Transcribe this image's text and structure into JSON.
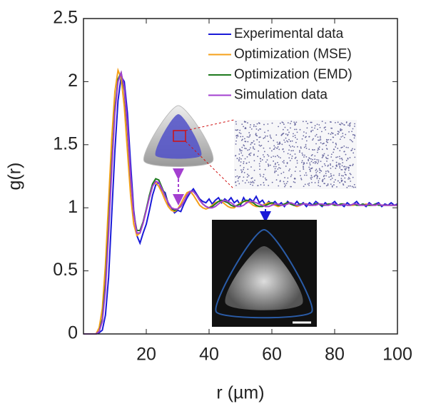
{
  "chart_data": {
    "type": "line",
    "x_label": "r (µm)",
    "y_label": "g(r)",
    "x": [
      0,
      1,
      2,
      3,
      4,
      5,
      6,
      7,
      8,
      9,
      10,
      11,
      12,
      13,
      14,
      15,
      16,
      17,
      18,
      19,
      20,
      21,
      22,
      23,
      24,
      25,
      26,
      27,
      28,
      29,
      30,
      31,
      32,
      33,
      34,
      35,
      36,
      37,
      38,
      39,
      40,
      41,
      42,
      43,
      44,
      45,
      46,
      47,
      48,
      49,
      50,
      51,
      52,
      53,
      54,
      55,
      56,
      57,
      58,
      59,
      60,
      61,
      62,
      63,
      64,
      65,
      66,
      67,
      68,
      69,
      70,
      71,
      72,
      73,
      74,
      75,
      76,
      77,
      78,
      79,
      80,
      81,
      82,
      83,
      84,
      85,
      86,
      87,
      88,
      89,
      90,
      91,
      92,
      93,
      94,
      95,
      96,
      97,
      98,
      99,
      100
    ],
    "series": [
      {
        "name": "Experimental data",
        "color": "#1a1ad8",
        "values": [
          0,
          0,
          0,
          0,
          0,
          0.01,
          0.03,
          0.15,
          0.45,
          0.95,
          1.45,
          1.85,
          2.04,
          2.0,
          1.75,
          1.35,
          0.98,
          0.78,
          0.72,
          0.8,
          0.87,
          0.98,
          1.1,
          1.18,
          1.2,
          1.14,
          1.12,
          1.03,
          1.0,
          0.96,
          0.98,
          0.97,
          1.03,
          1.08,
          1.12,
          1.15,
          1.11,
          1.07,
          1.05,
          1.04,
          1.07,
          1.03,
          1.06,
          1.08,
          1.04,
          1.07,
          1.05,
          1.08,
          1.04,
          1.06,
          1.02,
          1.08,
          1.04,
          1.07,
          1.05,
          1.09,
          1.04,
          1.06,
          1.02,
          1.05,
          1.03,
          1.05,
          1.02,
          1.04,
          1.01,
          1.05,
          1.03,
          1.02,
          1.05,
          1.02,
          1.04,
          1.01,
          1.04,
          1.02,
          1.05,
          1.03,
          1.01,
          1.04,
          1.02,
          1.03,
          1.05,
          1.02,
          1.03,
          1.01,
          1.04,
          1.02,
          1.03,
          1.05,
          1.02,
          1.03,
          1.01,
          1.04,
          1.02,
          1.03,
          1.04,
          1.01,
          1.03,
          1.02,
          1.04,
          1.02,
          1.03
        ]
      },
      {
        "name": "Optimization (MSE)",
        "color": "#f5a01a",
        "values": [
          0,
          0,
          0,
          0,
          0,
          0.05,
          0.2,
          0.55,
          1.05,
          1.55,
          1.92,
          2.09,
          2.03,
          1.8,
          1.45,
          1.1,
          0.87,
          0.78,
          0.8,
          0.88,
          0.98,
          1.09,
          1.18,
          1.2,
          1.17,
          1.12,
          1.06,
          1.01,
          0.98,
          0.97,
          0.99,
          1.03,
          1.08,
          1.12,
          1.13,
          1.1,
          1.06,
          1.02,
          1.0,
          0.99,
          1.0,
          1.02,
          1.04,
          1.05,
          1.05,
          1.03,
          1.01,
          1.0,
          1.0,
          1.02,
          1.04,
          1.05,
          1.05,
          1.04,
          1.02,
          1.01,
          1.01,
          1.02,
          1.03,
          1.04,
          1.03,
          1.02,
          1.01,
          1.02,
          1.03,
          1.04,
          1.03,
          1.02,
          1.01,
          1.02,
          1.03,
          1.03,
          1.02,
          1.02,
          1.03,
          1.03,
          1.02,
          1.02,
          1.03,
          1.03,
          1.02,
          1.02,
          1.03,
          1.03,
          1.02,
          1.02,
          1.02,
          1.03,
          1.02,
          1.02,
          1.03,
          1.02,
          1.02,
          1.02,
          1.03,
          1.02,
          1.02,
          1.02,
          1.02,
          1.02,
          1.02
        ]
      },
      {
        "name": "Optimization (EMD)",
        "color": "#1f7a1f",
        "values": [
          0,
          0,
          0,
          0,
          0,
          0.02,
          0.12,
          0.4,
          0.85,
          1.35,
          1.78,
          2.02,
          2.07,
          1.93,
          1.62,
          1.24,
          0.95,
          0.82,
          0.82,
          0.89,
          0.99,
          1.1,
          1.19,
          1.23,
          1.22,
          1.16,
          1.1,
          1.04,
          1.0,
          0.98,
          0.99,
          1.01,
          1.05,
          1.1,
          1.13,
          1.13,
          1.1,
          1.06,
          1.03,
          1.01,
          1.0,
          1.01,
          1.03,
          1.05,
          1.06,
          1.05,
          1.04,
          1.02,
          1.01,
          1.02,
          1.03,
          1.05,
          1.06,
          1.05,
          1.04,
          1.02,
          1.01,
          1.01,
          1.02,
          1.03,
          1.04,
          1.03,
          1.02,
          1.02,
          1.03,
          1.04,
          1.03,
          1.02,
          1.02,
          1.03,
          1.03,
          1.03,
          1.02,
          1.02,
          1.03,
          1.03,
          1.02,
          1.02,
          1.03,
          1.03,
          1.02,
          1.02,
          1.03,
          1.03,
          1.02,
          1.02,
          1.03,
          1.02,
          1.02,
          1.03,
          1.02,
          1.02,
          1.02,
          1.03,
          1.02,
          1.02,
          1.02,
          1.02,
          1.02,
          1.02,
          1.02
        ]
      },
      {
        "name": "Simulation data",
        "color": "#a33fd0",
        "values": [
          0,
          0,
          0,
          0,
          0,
          0.02,
          0.1,
          0.35,
          0.8,
          1.3,
          1.75,
          2.0,
          2.07,
          1.95,
          1.65,
          1.25,
          0.95,
          0.8,
          0.8,
          0.88,
          0.98,
          1.08,
          1.17,
          1.21,
          1.2,
          1.15,
          1.09,
          1.04,
          1.0,
          0.99,
          0.99,
          1.01,
          1.05,
          1.1,
          1.13,
          1.13,
          1.1,
          1.06,
          1.03,
          1.01,
          1.0,
          1.0,
          1.01,
          1.03,
          1.05,
          1.06,
          1.05,
          1.04,
          1.02,
          1.01,
          1.01,
          1.02,
          1.04,
          1.05,
          1.05,
          1.04,
          1.03,
          1.02,
          1.01,
          1.01,
          1.02,
          1.03,
          1.03,
          1.02,
          1.02,
          1.03,
          1.04,
          1.03,
          1.02,
          1.02,
          1.03,
          1.03,
          1.02,
          1.02,
          1.02,
          1.03,
          1.03,
          1.02,
          1.02,
          1.03,
          1.03,
          1.02,
          1.02,
          1.03,
          1.02,
          1.02,
          1.03,
          1.03,
          1.02,
          1.02,
          1.02,
          1.03,
          1.02,
          1.02,
          1.03,
          1.02,
          1.02,
          1.02,
          1.02,
          1.02,
          1.02
        ]
      }
    ],
    "xlim": [
      0,
      100
    ],
    "xticks": [
      20,
      40,
      60,
      80,
      100
    ],
    "ylim": [
      0,
      2.5
    ],
    "yticks": [
      0,
      0.5,
      1,
      1.5,
      2,
      2.5
    ],
    "legend": "upper right"
  }
}
